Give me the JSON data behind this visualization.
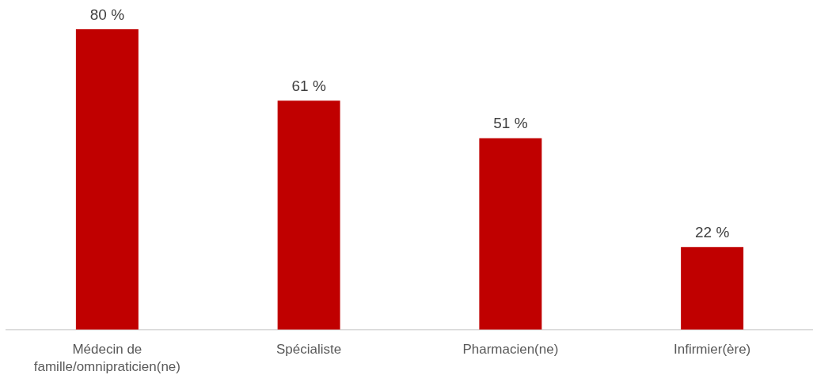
{
  "chart_data": {
    "type": "bar",
    "categories": [
      "Médecin de famille/omnipraticien(ne)",
      "Spécialiste",
      "Pharmacien(ne)",
      "Infirmier(ère)"
    ],
    "values": [
      80,
      61,
      51,
      22
    ],
    "color": "#c00000",
    "value_labels": [
      "80 %",
      "61 %",
      "51 %",
      "22 %"
    ],
    "grid": false,
    "legend": false,
    "tick_labels": "x"
  }
}
